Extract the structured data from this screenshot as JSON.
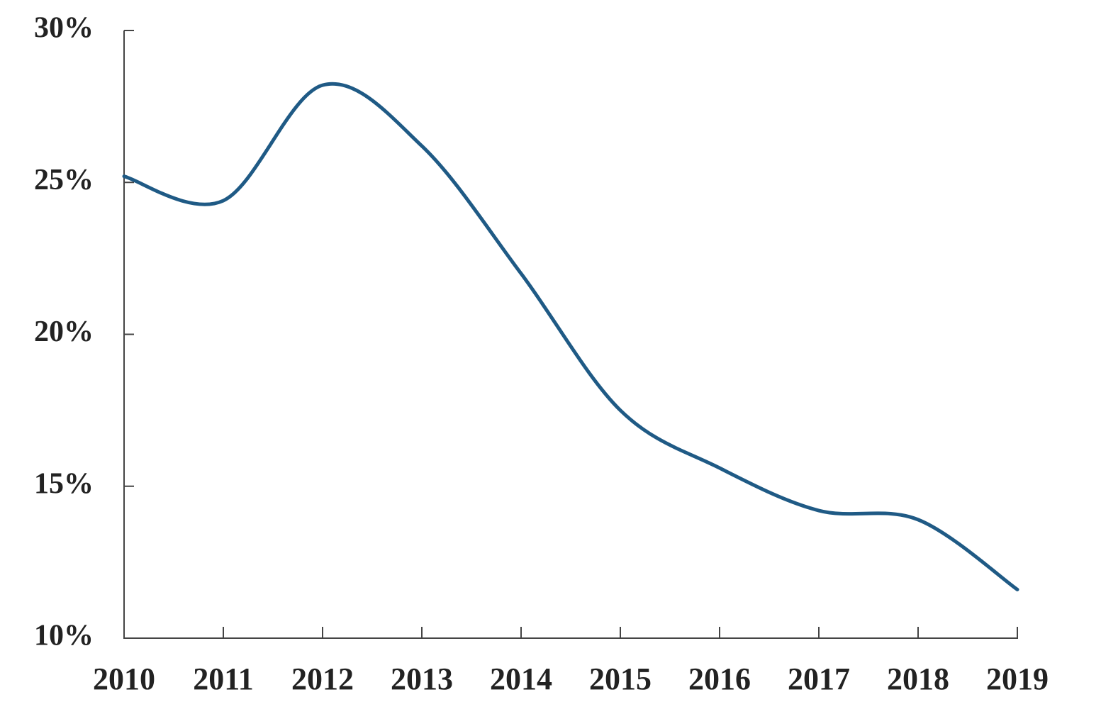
{
  "chart_data": {
    "type": "line",
    "categories": [
      "2010",
      "2011",
      "2012",
      "2013",
      "2014",
      "2015",
      "2016",
      "2017",
      "2018",
      "2019"
    ],
    "values": [
      25.2,
      24.4,
      28.2,
      26.2,
      22.0,
      17.5,
      15.6,
      14.2,
      13.9,
      11.6
    ],
    "color": "#1f5a85",
    "ylim": [
      10,
      30
    ],
    "yticks": [
      {
        "value": 10,
        "label": "10%"
      },
      {
        "value": 15,
        "label": "15%"
      },
      {
        "value": 20,
        "label": "20%"
      },
      {
        "value": 25,
        "label": "25%"
      },
      {
        "value": 30,
        "label": "30%"
      }
    ],
    "grid": false
  }
}
